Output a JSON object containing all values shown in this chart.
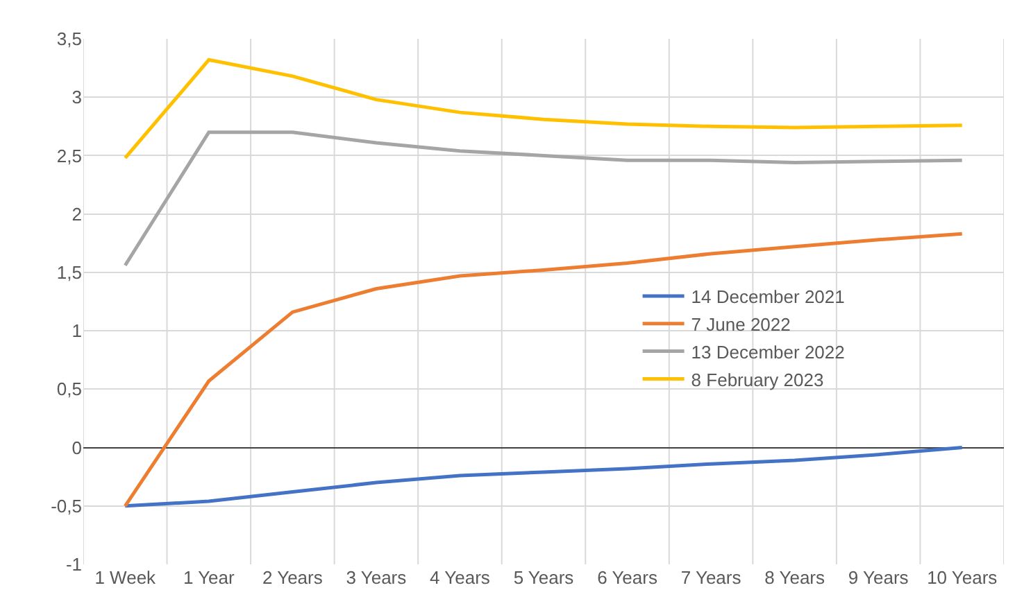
{
  "chart_data": {
    "type": "line",
    "categories": [
      "1 Week",
      "1 Year",
      "2 Years",
      "3 Years",
      "4 Years",
      "5 Years",
      "6 Years",
      "7 Years",
      "8 Years",
      "9 Years",
      "10 Years"
    ],
    "series": [
      {
        "name": "14 December 2021",
        "color": "#4472c4",
        "values": [
          -0.5,
          -0.46,
          -0.38,
          -0.3,
          -0.24,
          -0.21,
          -0.18,
          -0.14,
          -0.11,
          -0.06,
          0.0
        ]
      },
      {
        "name": "7 June 2022",
        "color": "#ed7d31",
        "values": [
          -0.5,
          0.57,
          1.16,
          1.36,
          1.47,
          1.52,
          1.58,
          1.66,
          1.72,
          1.78,
          1.83
        ]
      },
      {
        "name": "13 December 2022",
        "color": "#a5a5a5",
        "values": [
          1.56,
          2.7,
          2.7,
          2.61,
          2.54,
          2.5,
          2.46,
          2.46,
          2.44,
          2.45,
          2.46
        ]
      },
      {
        "name": "8 February 2023",
        "color": "#ffc000",
        "values": [
          2.48,
          3.32,
          3.18,
          2.98,
          2.87,
          2.81,
          2.77,
          2.75,
          2.74,
          2.75,
          2.76
        ]
      }
    ],
    "ylim": [
      -1,
      3.5
    ],
    "yticks": [
      {
        "value": -1,
        "label": "-1"
      },
      {
        "value": -0.5,
        "label": "-0,5"
      },
      {
        "value": 0,
        "label": "0"
      },
      {
        "value": 0.5,
        "label": "0,5"
      },
      {
        "value": 1,
        "label": "1"
      },
      {
        "value": 1.5,
        "label": "1,5"
      },
      {
        "value": 2,
        "label": "2"
      },
      {
        "value": 2.5,
        "label": "2,5"
      },
      {
        "value": 3,
        "label": "3"
      },
      {
        "value": 3.5,
        "label": "3,5"
      }
    ],
    "grid": true,
    "legend": "right",
    "marker": "none",
    "line_style": "solid"
  }
}
